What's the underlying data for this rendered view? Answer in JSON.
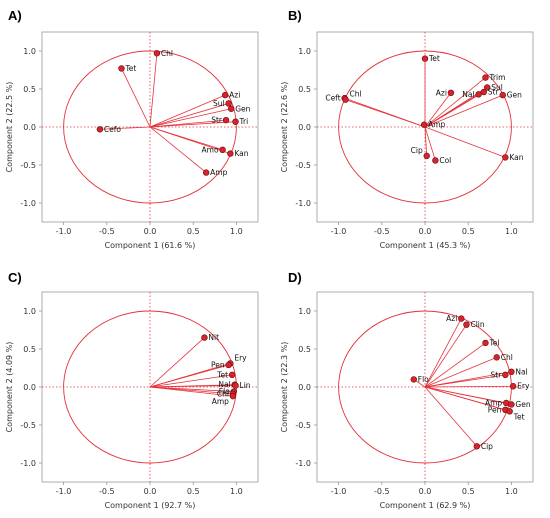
{
  "chart_data": [
    {
      "panel": "A)",
      "type": "scatter",
      "xlabel": "Component 1",
      "xpct": "(61.6 %)",
      "ylabel": "Component 2",
      "ypct": "(22.5 %)",
      "xlim": [
        -1.25,
        1.25
      ],
      "ylim": [
        -1.25,
        1.25
      ],
      "xticks": [
        "-1.0",
        "-0.5",
        "0.0",
        "0.5",
        "1.0"
      ],
      "yticks": [
        "1.0",
        "0.5",
        "0.0",
        "-0.5",
        "-1.0"
      ],
      "points": [
        {
          "name": "Tet",
          "x": -0.33,
          "y": 0.77,
          "label_side": "right"
        },
        {
          "name": "Chl",
          "x": 0.08,
          "y": 0.97,
          "label_side": "right"
        },
        {
          "name": "Azi",
          "x": 0.87,
          "y": 0.42,
          "label_side": "right"
        },
        {
          "name": "Sul",
          "x": 0.91,
          "y": 0.31,
          "label_side": "left"
        },
        {
          "name": "Gen",
          "x": 0.94,
          "y": 0.24,
          "label_side": "right"
        },
        {
          "name": "Str",
          "x": 0.88,
          "y": 0.09,
          "label_side": "left"
        },
        {
          "name": "Tri",
          "x": 0.99,
          "y": 0.07,
          "label_side": "right"
        },
        {
          "name": "Cefo",
          "x": -0.58,
          "y": -0.03,
          "label_side": "right"
        },
        {
          "name": "Amo",
          "x": 0.84,
          "y": -0.3,
          "label_side": "left"
        },
        {
          "name": "Kan",
          "x": 0.93,
          "y": -0.35,
          "label_side": "right"
        },
        {
          "name": "Amp",
          "x": 0.65,
          "y": -0.6,
          "label_side": "right"
        }
      ]
    },
    {
      "panel": "B)",
      "type": "scatter",
      "xlabel": "Component 1",
      "xpct": "(45.3 %)",
      "ylabel": "Component 2",
      "ypct": "(22.6 %)",
      "xlim": [
        -1.25,
        1.25
      ],
      "ylim": [
        -1.25,
        1.25
      ],
      "xticks": [
        "-1.0",
        "-0.5",
        "0.0",
        "0.5",
        "1.0"
      ],
      "yticks": [
        "1.0",
        "0.5",
        "0.0",
        "-0.5",
        "-1.0"
      ],
      "points": [
        {
          "name": "Tet",
          "x": 0.0,
          "y": 0.9,
          "label_side": "right"
        },
        {
          "name": "Ceft",
          "x": -0.93,
          "y": 0.38,
          "label_side": "left"
        },
        {
          "name": "Chl",
          "x": -0.92,
          "y": 0.36,
          "label_side": "rightup"
        },
        {
          "name": "Trim",
          "x": 0.7,
          "y": 0.65,
          "label_side": "right"
        },
        {
          "name": "Azi",
          "x": 0.3,
          "y": 0.45,
          "label_side": "left"
        },
        {
          "name": "Sul",
          "x": 0.72,
          "y": 0.52,
          "label_side": "right"
        },
        {
          "name": "Nal",
          "x": 0.62,
          "y": 0.43,
          "label_side": "left"
        },
        {
          "name": "Str",
          "x": 0.68,
          "y": 0.46,
          "label_side": "right"
        },
        {
          "name": "Gen",
          "x": 0.9,
          "y": 0.42,
          "label_side": "right"
        },
        {
          "name": "Amp",
          "x": -0.01,
          "y": 0.03,
          "label_side": "right"
        },
        {
          "name": "Cip",
          "x": 0.02,
          "y": -0.38,
          "label_side": "leftup"
        },
        {
          "name": "Col",
          "x": 0.12,
          "y": -0.44,
          "label_side": "right"
        },
        {
          "name": "Kan",
          "x": 0.93,
          "y": -0.4,
          "label_side": "right"
        }
      ]
    },
    {
      "panel": "C)",
      "type": "scatter",
      "xlabel": "Component 1",
      "xpct": "(92.7 %)",
      "ylabel": "Component 2",
      "ypct": "(4.09 %)",
      "xlim": [
        -1.25,
        1.25
      ],
      "ylim": [
        -1.25,
        1.25
      ],
      "xticks": [
        "-1.0",
        "-0.5",
        "0.0",
        "0.5",
        "1.0"
      ],
      "yticks": [
        "1.0",
        "0.5",
        "0.0",
        "-0.5",
        "-1.0"
      ],
      "points": [
        {
          "name": "Nit",
          "x": 0.63,
          "y": 0.65,
          "label_side": "right"
        },
        {
          "name": "Ery",
          "x": 0.93,
          "y": 0.31,
          "label_side": "rightup"
        },
        {
          "name": "Pen",
          "x": 0.91,
          "y": 0.29,
          "label_side": "left"
        },
        {
          "name": "Tet",
          "x": 0.95,
          "y": 0.16,
          "label_side": "left"
        },
        {
          "name": "Nal",
          "x": 0.98,
          "y": 0.03,
          "label_side": "left"
        },
        {
          "name": "Lin",
          "x": 0.99,
          "y": 0.02,
          "label_side": "right"
        },
        {
          "name": "Flo",
          "x": 0.97,
          "y": -0.06,
          "label_side": "left"
        },
        {
          "name": "Chl",
          "x": 0.96,
          "y": -0.09,
          "label_side": "left"
        },
        {
          "name": "Amp",
          "x": 0.96,
          "y": -0.12,
          "label_side": "leftdown"
        }
      ]
    },
    {
      "panel": "D)",
      "type": "scatter",
      "xlabel": "Component 1",
      "xpct": "(62.9 %)",
      "ylabel": "Component 2",
      "ypct": "(22.3 %)",
      "xlim": [
        -1.25,
        1.25
      ],
      "ylim": [
        -1.25,
        1.25
      ],
      "xticks": [
        "-1.0",
        "-0.5",
        "0.0",
        "0.5",
        "1.0"
      ],
      "yticks": [
        "1.0",
        "0.5",
        "0.0",
        "-0.5",
        "-1.0"
      ],
      "points": [
        {
          "name": "Azi",
          "x": 0.42,
          "y": 0.9,
          "label_side": "left"
        },
        {
          "name": "Clin",
          "x": 0.48,
          "y": 0.82,
          "label_side": "right"
        },
        {
          "name": "Tel",
          "x": 0.7,
          "y": 0.58,
          "label_side": "right"
        },
        {
          "name": "Chl",
          "x": 0.83,
          "y": 0.39,
          "label_side": "right"
        },
        {
          "name": "Nal",
          "x": 1.0,
          "y": 0.2,
          "label_side": "right"
        },
        {
          "name": "Str",
          "x": 0.93,
          "y": 0.16,
          "label_side": "left"
        },
        {
          "name": "Ery",
          "x": 1.02,
          "y": 0.01,
          "label_side": "right"
        },
        {
          "name": "Flo",
          "x": -0.13,
          "y": 0.1,
          "label_side": "right"
        },
        {
          "name": "Amp",
          "x": 0.94,
          "y": -0.21,
          "label_side": "left"
        },
        {
          "name": "Gen",
          "x": 1.0,
          "y": -0.23,
          "label_side": "right"
        },
        {
          "name": "Pen",
          "x": 0.93,
          "y": -0.3,
          "label_side": "left"
        },
        {
          "name": "Tet",
          "x": 0.98,
          "y": -0.32,
          "label_side": "rightdown"
        },
        {
          "name": "Cip",
          "x": 0.6,
          "y": -0.78,
          "label_side": "right"
        }
      ]
    }
  ]
}
